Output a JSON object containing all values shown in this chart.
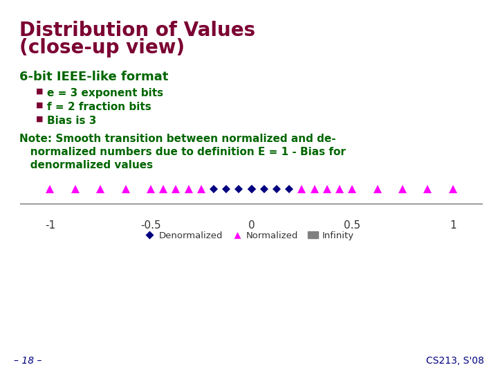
{
  "title_line1": "Distribution of Values",
  "title_line2": "(close-up view)",
  "title_color": "#7B0032",
  "title_fontsize": 20,
  "subtitle_6bit": "6-bit IEEE-like format",
  "subtitle_color": "#006600",
  "bullet_sq_color": "#7B0032",
  "bullets": [
    "e = 3 exponent bits",
    "f = 2 fraction bits",
    "Bias is 3"
  ],
  "note_line1": "Note: Smooth transition between normalized and de-",
  "note_line2": "   normalized numbers due to definition E = 1 - Bias for",
  "note_line3": "   denormalized values",
  "note_color": "#006600",
  "denorm_color": "#000080",
  "norm_color": "#FF00FF",
  "inf_color": "#808080",
  "bg_color": "#FFFFFF",
  "footer_left": "– 18 –",
  "footer_right": "CS213, S'08",
  "footer_color": "#000080",
  "xlim": [
    -1.15,
    1.15
  ],
  "xticks": [
    -1,
    -0.5,
    0,
    0.5,
    1
  ],
  "xtick_labels": [
    "-1",
    "-0.5",
    "0",
    "0.5",
    "1"
  ]
}
